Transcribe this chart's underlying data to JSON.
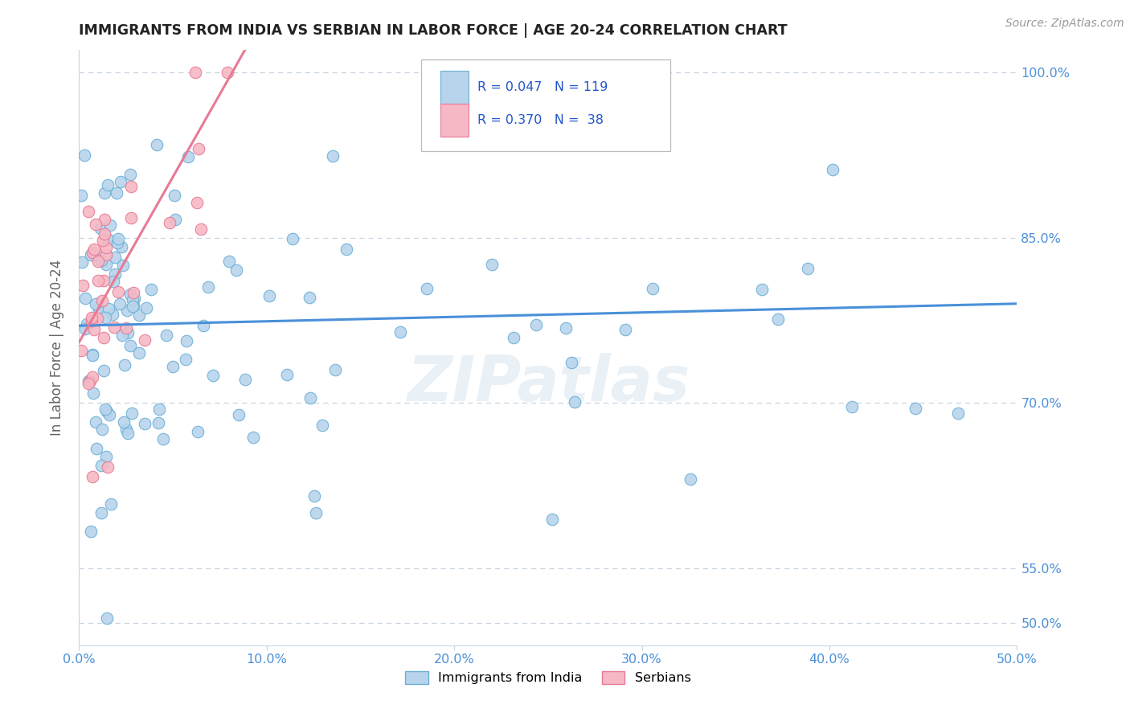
{
  "title": "IMMIGRANTS FROM INDIA VS SERBIAN IN LABOR FORCE | AGE 20-24 CORRELATION CHART",
  "source": "Source: ZipAtlas.com",
  "ylabel": "In Labor Force | Age 20-24",
  "xlim": [
    0.0,
    0.5
  ],
  "ylim": [
    0.48,
    1.02
  ],
  "yticks": [
    0.5,
    0.55,
    0.7,
    0.85,
    1.0
  ],
  "ytick_labels": [
    "50.0%",
    "55.0%",
    "70.0%",
    "85.0%",
    "100.0%"
  ],
  "xtick_labels": [
    "0.0%",
    "10.0%",
    "20.0%",
    "30.0%",
    "40.0%",
    "50.0%"
  ],
  "xticks": [
    0.0,
    0.1,
    0.2,
    0.3,
    0.4,
    0.5
  ],
  "india_color": "#b8d4ec",
  "india_edge_color": "#6aafd6",
  "serbian_color": "#f5b8c4",
  "serbian_edge_color": "#e87a95",
  "india_line_color": "#4a90d9",
  "serbian_line_color": "#e87a95",
  "legend_text_color": "#2255cc",
  "axis_tick_color": "#4a90d9",
  "india_R": 0.047,
  "india_N": 119,
  "serbian_R": 0.37,
  "serbian_N": 38,
  "watermark": "ZIPatlas",
  "grid_color": "#c8d4e0",
  "spine_color": "#c8d4e0"
}
